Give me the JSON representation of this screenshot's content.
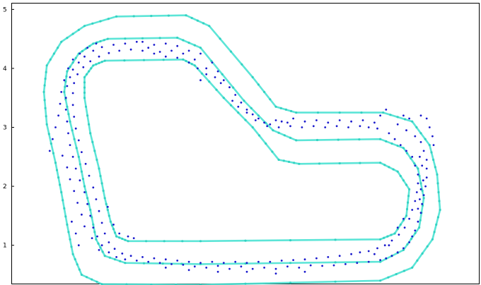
{
  "chart_data": {
    "type": "scatter",
    "title": "",
    "xlabel": "",
    "ylabel": "",
    "ylim": [
      0.35,
      5.1
    ],
    "xlim": [
      -0.05,
      8.0
    ],
    "yticks": [
      1,
      2,
      3,
      4,
      5
    ],
    "grid": false,
    "legend": "none",
    "colors": {
      "track": "#40e0d0",
      "track_points": "#2fcfc0",
      "positions": "#1a1acd"
    },
    "track": {
      "outer": [
        [
          1.75,
          4.88
        ],
        [
          2.95,
          4.9
        ],
        [
          3.35,
          4.72
        ],
        [
          4.1,
          3.85
        ],
        [
          4.5,
          3.35
        ],
        [
          4.85,
          3.25
        ],
        [
          6.35,
          3.25
        ],
        [
          6.85,
          3.1
        ],
        [
          7.15,
          2.7
        ],
        [
          7.28,
          2.2
        ],
        [
          7.33,
          1.6
        ],
        [
          7.2,
          1.1
        ],
        [
          6.85,
          0.62
        ],
        [
          6.3,
          0.4
        ],
        [
          3.2,
          0.33
        ],
        [
          1.5,
          0.34
        ],
        [
          1.15,
          0.5
        ],
        [
          1.0,
          0.85
        ],
        [
          0.9,
          1.35
        ],
        [
          0.8,
          1.9
        ],
        [
          0.7,
          2.4
        ],
        [
          0.55,
          3.05
        ],
        [
          0.5,
          3.6
        ],
        [
          0.55,
          4.05
        ],
        [
          0.8,
          4.45
        ],
        [
          1.2,
          4.72
        ],
        [
          1.75,
          4.88
        ]
      ],
      "middle": [
        [
          1.6,
          4.5
        ],
        [
          2.8,
          4.52
        ],
        [
          3.2,
          4.35
        ],
        [
          3.95,
          3.45
        ],
        [
          4.45,
          2.95
        ],
        [
          4.85,
          2.78
        ],
        [
          6.3,
          2.8
        ],
        [
          6.7,
          2.65
        ],
        [
          6.95,
          2.3
        ],
        [
          7.05,
          1.8
        ],
        [
          6.97,
          1.3
        ],
        [
          6.7,
          0.92
        ],
        [
          6.3,
          0.72
        ],
        [
          3.2,
          0.68
        ],
        [
          1.9,
          0.7
        ],
        [
          1.55,
          0.82
        ],
        [
          1.4,
          1.1
        ],
        [
          1.3,
          1.6
        ],
        [
          1.2,
          2.0
        ],
        [
          1.1,
          2.5
        ],
        [
          0.95,
          3.1
        ],
        [
          0.85,
          3.6
        ],
        [
          0.9,
          3.95
        ],
        [
          1.1,
          4.25
        ],
        [
          1.35,
          4.42
        ],
        [
          1.6,
          4.5
        ]
      ],
      "inner": [
        [
          1.55,
          4.13
        ],
        [
          2.9,
          4.15
        ],
        [
          3.1,
          4.05
        ],
        [
          3.6,
          3.5
        ],
        [
          4.1,
          3.0
        ],
        [
          4.55,
          2.45
        ],
        [
          4.9,
          2.38
        ],
        [
          6.3,
          2.4
        ],
        [
          6.6,
          2.25
        ],
        [
          6.8,
          1.95
        ],
        [
          6.75,
          1.5
        ],
        [
          6.55,
          1.2
        ],
        [
          6.3,
          1.1
        ],
        [
          3.2,
          1.07
        ],
        [
          1.95,
          1.07
        ],
        [
          1.75,
          1.15
        ],
        [
          1.65,
          1.4
        ],
        [
          1.55,
          1.8
        ],
        [
          1.45,
          2.3
        ],
        [
          1.3,
          2.9
        ],
        [
          1.2,
          3.5
        ],
        [
          1.2,
          3.85
        ],
        [
          1.35,
          4.05
        ],
        [
          1.55,
          4.13
        ]
      ]
    },
    "positions": [
      [
        2.2,
        4.45
      ],
      [
        2.4,
        4.4
      ],
      [
        2.6,
        4.42
      ],
      [
        2.8,
        4.38
      ],
      [
        3.0,
        4.3
      ],
      [
        3.2,
        4.25
      ],
      [
        3.4,
        4.1
      ],
      [
        3.5,
        3.95
      ],
      [
        3.6,
        3.8
      ],
      [
        3.7,
        3.68
      ],
      [
        3.8,
        3.55
      ],
      [
        3.9,
        3.42
      ],
      [
        4.0,
        3.3
      ],
      [
        4.1,
        3.22
      ],
      [
        4.2,
        3.15
      ],
      [
        4.3,
        3.08
      ],
      [
        4.4,
        3.05
      ],
      [
        4.5,
        3.12
      ],
      [
        4.6,
        3.1
      ],
      [
        4.7,
        3.08
      ],
      [
        4.8,
        3.15
      ],
      [
        5.0,
        3.1
      ],
      [
        5.2,
        3.12
      ],
      [
        5.4,
        3.08
      ],
      [
        5.6,
        3.12
      ],
      [
        5.8,
        3.1
      ],
      [
        6.0,
        3.12
      ],
      [
        6.2,
        3.08
      ],
      [
        6.3,
        3.2
      ],
      [
        6.4,
        3.3
      ],
      [
        6.6,
        3.05
      ],
      [
        6.75,
        2.95
      ],
      [
        6.9,
        2.85
      ],
      [
        7.0,
        2.75
      ],
      [
        7.05,
        2.6
      ],
      [
        7.1,
        2.45
      ],
      [
        7.1,
        2.3
      ],
      [
        7.1,
        2.15
      ],
      [
        7.08,
        2.0
      ],
      [
        7.05,
        1.85
      ],
      [
        7.02,
        1.7
      ],
      [
        7.0,
        1.55
      ],
      [
        6.95,
        1.4
      ],
      [
        6.9,
        1.25
      ],
      [
        6.85,
        1.15
      ],
      [
        6.8,
        1.05
      ],
      [
        6.7,
        0.95
      ],
      [
        6.6,
        0.88
      ],
      [
        6.5,
        0.82
      ],
      [
        6.4,
        0.78
      ],
      [
        6.3,
        0.75
      ],
      [
        6.1,
        0.72
      ],
      [
        5.9,
        0.7
      ],
      [
        5.7,
        0.68
      ],
      [
        5.5,
        0.66
      ],
      [
        5.3,
        0.65
      ],
      [
        5.1,
        0.66
      ],
      [
        4.9,
        0.62
      ],
      [
        4.7,
        0.64
      ],
      [
        4.5,
        0.6
      ],
      [
        4.3,
        0.62
      ],
      [
        4.1,
        0.6
      ],
      [
        3.9,
        0.64
      ],
      [
        3.7,
        0.6
      ],
      [
        3.5,
        0.65
      ],
      [
        3.3,
        0.62
      ],
      [
        3.1,
        0.64
      ],
      [
        2.9,
        0.67
      ],
      [
        2.7,
        0.68
      ],
      [
        2.5,
        0.7
      ],
      [
        2.3,
        0.72
      ],
      [
        2.1,
        0.74
      ],
      [
        1.9,
        0.76
      ],
      [
        1.75,
        0.8
      ],
      [
        1.62,
        0.88
      ],
      [
        1.5,
        1.0
      ],
      [
        1.42,
        1.15
      ],
      [
        1.35,
        1.3
      ],
      [
        1.3,
        1.5
      ],
      [
        1.25,
        1.7
      ],
      [
        1.2,
        1.9
      ],
      [
        1.12,
        2.1
      ],
      [
        1.05,
        2.3
      ],
      [
        1.0,
        2.5
      ],
      [
        0.95,
        2.7
      ],
      [
        0.92,
        2.9
      ],
      [
        0.9,
        3.1
      ],
      [
        0.88,
        3.3
      ],
      [
        0.88,
        3.5
      ],
      [
        0.9,
        3.7
      ],
      [
        0.95,
        3.85
      ],
      [
        1.0,
        3.98
      ],
      [
        1.1,
        4.1
      ],
      [
        1.2,
        4.2
      ],
      [
        1.35,
        4.3
      ],
      [
        1.5,
        4.36
      ],
      [
        1.7,
        4.4
      ],
      [
        1.9,
        4.42
      ],
      [
        2.1,
        4.45
      ],
      [
        2.3,
        4.35
      ],
      [
        2.5,
        4.28
      ],
      [
        2.7,
        4.3
      ],
      [
        2.9,
        4.25
      ],
      [
        3.1,
        4.15
      ],
      [
        3.3,
        4.0
      ],
      [
        3.45,
        3.85
      ],
      [
        3.55,
        3.75
      ],
      [
        3.2,
        3.8
      ],
      [
        3.3,
        3.9
      ],
      [
        3.75,
        3.45
      ],
      [
        3.85,
        3.35
      ],
      [
        4.0,
        3.25
      ],
      [
        4.15,
        3.12
      ],
      [
        4.35,
        3.02
      ],
      [
        4.55,
        3.0
      ],
      [
        4.75,
        3.02
      ],
      [
        4.95,
        3.0
      ],
      [
        5.15,
        3.02
      ],
      [
        5.35,
        3.0
      ],
      [
        5.55,
        3.02
      ],
      [
        5.75,
        3.0
      ],
      [
        5.95,
        3.02
      ],
      [
        6.1,
        3.0
      ],
      [
        6.25,
        2.98
      ],
      [
        6.45,
        2.9
      ],
      [
        6.55,
        2.8
      ],
      [
        6.65,
        2.7
      ],
      [
        6.75,
        2.6
      ],
      [
        6.85,
        2.5
      ],
      [
        6.9,
        2.35
      ],
      [
        6.95,
        2.2
      ],
      [
        6.95,
        2.05
      ],
      [
        6.93,
        1.9
      ],
      [
        6.9,
        1.75
      ],
      [
        6.85,
        1.6
      ],
      [
        6.8,
        1.45
      ],
      [
        6.72,
        1.3
      ],
      [
        6.62,
        1.18
      ],
      [
        6.5,
        1.08
      ],
      [
        6.38,
        1.0
      ],
      [
        6.25,
        0.95
      ],
      [
        6.1,
        0.9
      ],
      [
        5.95,
        0.88
      ],
      [
        5.8,
        0.85
      ],
      [
        5.6,
        0.82
      ],
      [
        5.4,
        0.8
      ],
      [
        5.2,
        0.78
      ],
      [
        5.0,
        0.76
      ],
      [
        4.8,
        0.75
      ],
      [
        4.6,
        0.74
      ],
      [
        4.4,
        0.72
      ],
      [
        4.2,
        0.72
      ],
      [
        4.0,
        0.7
      ],
      [
        3.8,
        0.72
      ],
      [
        3.6,
        0.7
      ],
      [
        3.4,
        0.72
      ],
      [
        3.2,
        0.7
      ],
      [
        3.0,
        0.72
      ],
      [
        2.8,
        0.74
      ],
      [
        2.6,
        0.76
      ],
      [
        2.4,
        0.78
      ],
      [
        2.2,
        0.8
      ],
      [
        2.0,
        0.82
      ],
      [
        1.85,
        0.86
      ],
      [
        1.72,
        0.94
      ],
      [
        1.62,
        1.05
      ],
      [
        1.55,
        1.2
      ],
      [
        1.5,
        1.38
      ],
      [
        1.45,
        1.58
      ],
      [
        1.4,
        1.78
      ],
      [
        1.35,
        1.98
      ],
      [
        1.28,
        2.18
      ],
      [
        1.22,
        2.38
      ],
      [
        1.15,
        2.58
      ],
      [
        1.1,
        2.78
      ],
      [
        1.05,
        2.98
      ],
      [
        1.02,
        3.18
      ],
      [
        1.0,
        3.38
      ],
      [
        1.0,
        3.58
      ],
      [
        1.02,
        3.75
      ],
      [
        1.08,
        3.9
      ],
      [
        1.18,
        4.02
      ],
      [
        1.3,
        4.12
      ],
      [
        1.45,
        4.2
      ],
      [
        1.62,
        4.26
      ],
      [
        1.8,
        4.3
      ],
      [
        2.0,
        4.32
      ],
      [
        2.2,
        4.3
      ],
      [
        2.4,
        4.25
      ],
      [
        2.6,
        4.2
      ],
      [
        2.8,
        4.18
      ],
      [
        3.0,
        4.1
      ],
      [
        3.15,
        4.0
      ],
      [
        0.6,
        2.6
      ],
      [
        0.65,
        2.8
      ],
      [
        0.7,
        3.0
      ],
      [
        0.75,
        3.2
      ],
      [
        0.78,
        3.4
      ],
      [
        0.8,
        3.6
      ],
      [
        0.85,
        3.8
      ],
      [
        0.92,
        4.0
      ],
      [
        1.0,
        4.15
      ],
      [
        1.12,
        4.25
      ],
      [
        1.25,
        4.35
      ],
      [
        1.4,
        4.42
      ],
      [
        7.15,
        3.0
      ],
      [
        7.2,
        2.85
      ],
      [
        7.22,
        2.7
      ],
      [
        6.7,
        3.2
      ],
      [
        6.8,
        3.15
      ],
      [
        7.1,
        3.15
      ],
      [
        7.0,
        3.2
      ],
      [
        1.6,
        1.65
      ],
      [
        1.7,
        1.35
      ],
      [
        1.8,
        1.2
      ],
      [
        1.95,
        1.15
      ],
      [
        2.05,
        1.12
      ],
      [
        0.98,
        1.4
      ],
      [
        1.05,
        1.2
      ],
      [
        1.1,
        1.0
      ],
      [
        6.6,
        1.3
      ],
      [
        6.7,
        1.45
      ],
      [
        6.45,
        1.0
      ],
      [
        6.2,
        0.85
      ],
      [
        5.0,
        0.55
      ],
      [
        4.5,
        0.52
      ],
      [
        4.0,
        0.55
      ],
      [
        3.5,
        0.55
      ],
      [
        3.0,
        0.58
      ],
      [
        2.6,
        0.62
      ],
      [
        1.45,
        0.92
      ],
      [
        1.33,
        1.12
      ],
      [
        1.2,
        1.32
      ],
      [
        1.15,
        1.52
      ],
      [
        1.08,
        1.72
      ],
      [
        1.02,
        1.92
      ],
      [
        0.95,
        2.12
      ],
      [
        0.9,
        2.32
      ],
      [
        0.82,
        2.52
      ],
      [
        6.98,
        2.5
      ],
      [
        7.02,
        2.35
      ],
      [
        7.04,
        2.1
      ],
      [
        7.0,
        1.95
      ],
      [
        6.98,
        1.78
      ],
      [
        6.95,
        1.62
      ]
    ]
  }
}
